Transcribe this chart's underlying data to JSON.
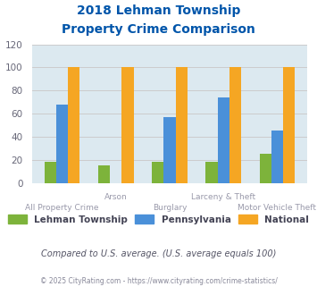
{
  "title_line1": "2018 Lehman Township",
  "title_line2": "Property Crime Comparison",
  "categories": [
    "All Property Crime",
    "Arson",
    "Burglary",
    "Larceny & Theft",
    "Motor Vehicle Theft"
  ],
  "series": {
    "Lehman Township": [
      18,
      15,
      18,
      18,
      25
    ],
    "Pennsylvania": [
      68,
      0,
      57,
      74,
      45
    ],
    "National": [
      100,
      100,
      100,
      100,
      100
    ]
  },
  "colors": {
    "Lehman Township": "#7db33b",
    "Pennsylvania": "#4a90d9",
    "National": "#f5a623"
  },
  "ylim": [
    0,
    120
  ],
  "yticks": [
    0,
    20,
    40,
    60,
    80,
    100,
    120
  ],
  "grid_color": "#cccccc",
  "bg_color": "#dce9f0",
  "title_color": "#0055aa",
  "xlabel_color": "#9999aa",
  "footnote1": "Compared to U.S. average. (U.S. average equals 100)",
  "footnote2": "© 2025 CityRating.com - https://www.cityrating.com/crime-statistics/",
  "footnote1_color": "#555566",
  "footnote2_color": "#888899",
  "legend_label_color": "#444455",
  "bar_width": 0.22
}
